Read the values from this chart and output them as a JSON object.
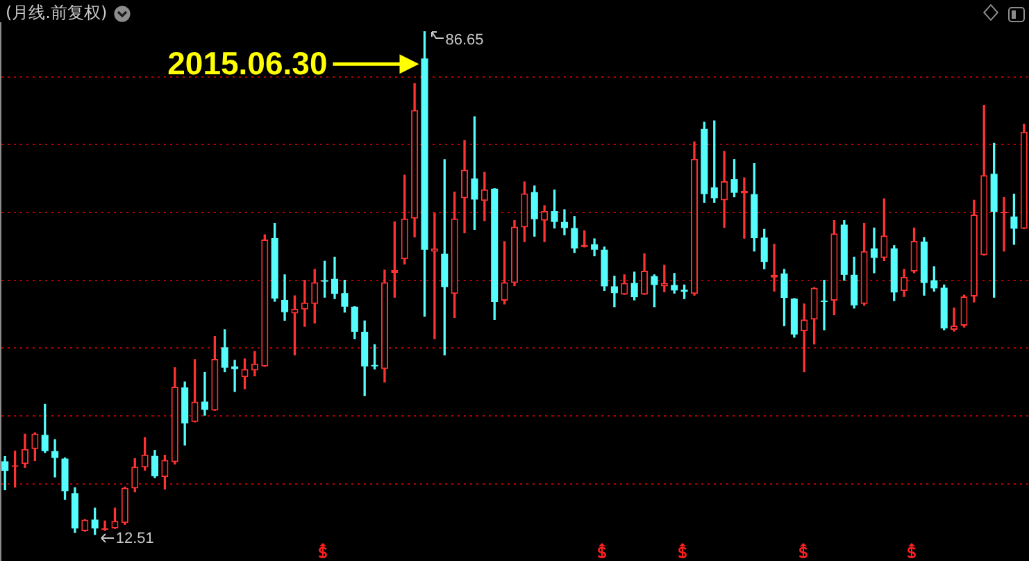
{
  "chart_data": {
    "type": "candlestick",
    "title": "(月线.前复权)",
    "categories": [
      null,
      null,
      null,
      null,
      null,
      null,
      null,
      null,
      null,
      null,
      null,
      null,
      null,
      null,
      null,
      null,
      null,
      null,
      null,
      null,
      null,
      null,
      null,
      null,
      null,
      null,
      null,
      null,
      null,
      null,
      null,
      null,
      null,
      null,
      null,
      null,
      null,
      null,
      null,
      null,
      null,
      null,
      null,
      null,
      null,
      null,
      null,
      null,
      null,
      null,
      null,
      null,
      null,
      null,
      null,
      null,
      null,
      null,
      null,
      null,
      null,
      null,
      null,
      null,
      null,
      null,
      null,
      null,
      null,
      null,
      null,
      null,
      null,
      null,
      null,
      null,
      null,
      null,
      null,
      null,
      null,
      null,
      null,
      null,
      null,
      null,
      null,
      null,
      null,
      null,
      null,
      null,
      null,
      null,
      null,
      null,
      null,
      null,
      null,
      null,
      null,
      null,
      null
    ],
    "ohlc": [
      [
        23.3,
        24.0,
        19.1,
        21.9
      ],
      [
        22.5,
        24.8,
        19.5,
        22.7
      ],
      [
        22.9,
        27.3,
        22.4,
        25.1
      ],
      [
        25.1,
        27.5,
        23.4,
        27.4
      ],
      [
        27.2,
        31.7,
        24.6,
        24.8
      ],
      [
        24.8,
        26.5,
        21.0,
        23.8
      ],
      [
        23.7,
        23.8,
        17.7,
        18.9
      ],
      [
        18.6,
        19.4,
        12.8,
        13.4
      ],
      [
        13.0,
        14.7,
        13.0,
        14.7
      ],
      [
        14.7,
        16.4,
        12.51,
        13.4
      ],
      [
        13.2,
        14.5,
        13.1,
        13.4
      ],
      [
        13.4,
        16.4,
        13.4,
        14.5
      ],
      [
        14.2,
        19.5,
        14.0,
        19.4
      ],
      [
        19.3,
        23.7,
        18.8,
        22.5
      ],
      [
        22.4,
        26.8,
        22.0,
        24.3
      ],
      [
        24.1,
        24.9,
        20.9,
        21.1
      ],
      [
        21.0,
        24.2,
        19.2,
        23.5
      ],
      [
        23.2,
        37.1,
        22.9,
        34.3
      ],
      [
        34.2,
        35.0,
        25.7,
        28.9
      ],
      [
        29.1,
        38.3,
        29.1,
        32.1
      ],
      [
        32.1,
        36.4,
        30.1,
        30.9
      ],
      [
        30.8,
        41.7,
        30.8,
        38.4
      ],
      [
        40.1,
        42.7,
        36.5,
        37.1
      ],
      [
        37.3,
        38.2,
        33.6,
        36.9
      ],
      [
        35.7,
        38.4,
        34.0,
        36.9
      ],
      [
        36.7,
        39.5,
        35.9,
        37.7
      ],
      [
        37.3,
        56.7,
        37.3,
        56.0
      ],
      [
        56.2,
        58.4,
        46.9,
        47.3
      ],
      [
        47.1,
        50.8,
        44.1,
        45.3
      ],
      [
        45.1,
        47.7,
        39.0,
        45.8
      ],
      [
        45.7,
        50.0,
        43.2,
        46.7
      ],
      [
        46.5,
        51.6,
        43.7,
        49.7
      ],
      [
        50.0,
        52.8,
        47.5,
        49.8
      ],
      [
        50.2,
        53.4,
        47.3,
        48.0
      ],
      [
        48.1,
        50.0,
        45.3,
        46.1
      ],
      [
        46.1,
        46.1,
        41.4,
        42.4
      ],
      [
        42.4,
        44.0,
        33.0,
        37.3
      ],
      [
        37.5,
        40.5,
        36.9,
        37.3
      ],
      [
        36.9,
        51.5,
        35.0,
        49.7
      ],
      [
        51.1,
        58.6,
        47.5,
        51.5
      ],
      [
        53.1,
        65.5,
        52.4,
        59.1
      ],
      [
        59.1,
        79.0,
        56.4,
        75.1
      ],
      [
        82.7,
        86.65,
        44.7,
        54.5
      ],
      [
        54.2,
        59.9,
        41.4,
        54.7
      ],
      [
        53.9,
        67.8,
        39.0,
        49.0
      ],
      [
        48.0,
        63.0,
        44.5,
        59.1
      ],
      [
        62.1,
        70.6,
        57.0,
        66.3
      ],
      [
        65.0,
        74.1,
        57.5,
        61.9
      ],
      [
        61.7,
        65.9,
        58.8,
        63.4
      ],
      [
        63.5,
        63.5,
        44.2,
        46.8
      ],
      [
        47.0,
        55.7,
        46.5,
        49.7
      ],
      [
        49.6,
        58.8,
        49.2,
        57.9
      ],
      [
        57.8,
        64.5,
        55.7,
        62.8
      ],
      [
        63.0,
        63.9,
        56.5,
        59.0
      ],
      [
        58.8,
        61.0,
        55.7,
        60.2
      ],
      [
        60.2,
        63.3,
        57.7,
        58.6
      ],
      [
        58.6,
        60.4,
        56.7,
        57.7
      ],
      [
        57.7,
        59.4,
        54.1,
        54.7
      ],
      [
        54.9,
        57.3,
        54.9,
        55.2
      ],
      [
        55.3,
        56.1,
        53.6,
        54.5
      ],
      [
        54.5,
        54.9,
        48.5,
        49.1
      ],
      [
        49.1,
        50.6,
        46.1,
        48.1
      ],
      [
        47.9,
        50.8,
        47.9,
        49.6
      ],
      [
        49.6,
        51.2,
        47.1,
        47.5
      ],
      [
        47.9,
        53.9,
        47.9,
        51.4
      ],
      [
        50.6,
        50.8,
        46.1,
        49.3
      ],
      [
        49.1,
        52.2,
        48.3,
        49.6
      ],
      [
        49.3,
        51.0,
        48.1,
        48.5
      ],
      [
        48.6,
        49.3,
        47.3,
        48.3
      ],
      [
        48.0,
        70.4,
        47.8,
        67.9
      ],
      [
        72.3,
        73.3,
        61.5,
        62.7
      ],
      [
        63.7,
        73.5,
        61.5,
        62.1
      ],
      [
        61.8,
        69.0,
        57.8,
        64.6
      ],
      [
        64.9,
        67.8,
        62.3,
        62.9
      ],
      [
        62.8,
        65.1,
        56.2,
        63.2
      ],
      [
        62.7,
        67.2,
        54.3,
        56.2
      ],
      [
        56.3,
        57.5,
        51.7,
        52.7
      ],
      [
        50.4,
        55.3,
        48.4,
        50.8
      ],
      [
        51.0,
        51.6,
        43.3,
        47.4
      ],
      [
        47.3,
        47.3,
        41.6,
        42.0
      ],
      [
        42.5,
        46.5,
        36.5,
        44.2
      ],
      [
        44.2,
        48.9,
        40.6,
        48.9
      ],
      [
        47.0,
        50.0,
        42.7,
        46.8
      ],
      [
        47.0,
        58.8,
        44.9,
        56.9
      ],
      [
        58.2,
        58.8,
        50.0,
        50.8
      ],
      [
        50.8,
        53.4,
        45.9,
        46.3
      ],
      [
        46.5,
        58.4,
        46.3,
        54.3
      ],
      [
        54.7,
        57.7,
        51.1,
        53.3
      ],
      [
        53.3,
        62.0,
        52.9,
        56.6
      ],
      [
        54.7,
        55.1,
        47.0,
        48.2
      ],
      [
        48.4,
        51.6,
        47.6,
        50.5
      ],
      [
        51.3,
        57.7,
        51.1,
        55.8
      ],
      [
        55.7,
        56.3,
        47.8,
        49.6
      ],
      [
        50.0,
        52.0,
        48.4,
        48.8
      ],
      [
        48.9,
        49.3,
        42.7,
        42.9
      ],
      [
        42.7,
        45.9,
        42.5,
        43.3
      ],
      [
        43.3,
        47.8,
        43.1,
        47.6
      ],
      [
        47.6,
        61.8,
        46.8,
        59.7
      ],
      [
        53.7,
        75.8,
        53.7,
        65.5
      ],
      [
        65.7,
        70.2,
        47.5,
        60.1
      ],
      [
        59.9,
        62.2,
        54.3,
        60.1
      ],
      [
        59.4,
        62.7,
        55.3,
        57.6
      ],
      [
        57.6,
        73.0,
        57.6,
        71.9
      ]
    ],
    "colors": [
      "#54fcfc",
      "#ff3232",
      "#ff3232",
      "#ff3232",
      "#54fcfc",
      "#54fcfc",
      "#54fcfc",
      "#54fcfc",
      "#ff3232",
      "#54fcfc",
      "#ff3232",
      "#ff3232",
      "#ff3232",
      "#ff3232",
      "#ff3232",
      "#54fcfc",
      "#ff3232",
      "#ff3232",
      "#54fcfc",
      "#ff3232",
      "#54fcfc",
      "#ff3232",
      "#54fcfc",
      "#54fcfc",
      "#ff3232",
      "#ff3232",
      "#ff3232",
      "#54fcfc",
      "#54fcfc",
      "#ff3232",
      "#ff3232",
      "#ff3232",
      "#54fcfc",
      "#54fcfc",
      "#54fcfc",
      "#54fcfc",
      "#54fcfc",
      "#54fcfc",
      "#ff3232",
      "#ff3232",
      "#ff3232",
      "#ff3232",
      "#54fcfc",
      "#ff3232",
      "#54fcfc",
      "#ff3232",
      "#ff3232",
      "#54fcfc",
      "#ff3232",
      "#54fcfc",
      "#ff3232",
      "#ff3232",
      "#ff3232",
      "#54fcfc",
      "#ff3232",
      "#54fcfc",
      "#54fcfc",
      "#54fcfc",
      "#ff3232",
      "#54fcfc",
      "#54fcfc",
      "#54fcfc",
      "#ff3232",
      "#54fcfc",
      "#ff3232",
      "#54fcfc",
      "#ff3232",
      "#54fcfc",
      "#54fcfc",
      "#ff3232",
      "#54fcfc",
      "#54fcfc",
      "#ff3232",
      "#54fcfc",
      "#ff3232",
      "#54fcfc",
      "#54fcfc",
      "#ff3232",
      "#54fcfc",
      "#54fcfc",
      "#ff3232",
      "#ff3232",
      "#54fcfc",
      "#ff3232",
      "#54fcfc",
      "#54fcfc",
      "#ff3232",
      "#54fcfc",
      "#ff3232",
      "#54fcfc",
      "#ff3232",
      "#ff3232",
      "#54fcfc",
      "#54fcfc",
      "#54fcfc",
      "#ff3232",
      "#ff3232",
      "#ff3232",
      "#ff3232",
      "#54fcfc",
      "#ff3232",
      "#54fcfc",
      "#ff3232"
    ],
    "ylim": [
      8.6,
      88.05
    ],
    "yticks": [
      {
        "value": 20,
        "label": null
      },
      {
        "value": 30,
        "label": null
      },
      {
        "value": 40,
        "label": null
      },
      {
        "value": 50,
        "label": null
      },
      {
        "value": 60,
        "label": null
      },
      {
        "value": 70,
        "label": null
      },
      {
        "value": 80,
        "label": null
      }
    ],
    "grid": "y",
    "tick_labels": false,
    "annotations": [
      "2015.06.30",
      "86.65",
      "12.51"
    ]
  }
}
